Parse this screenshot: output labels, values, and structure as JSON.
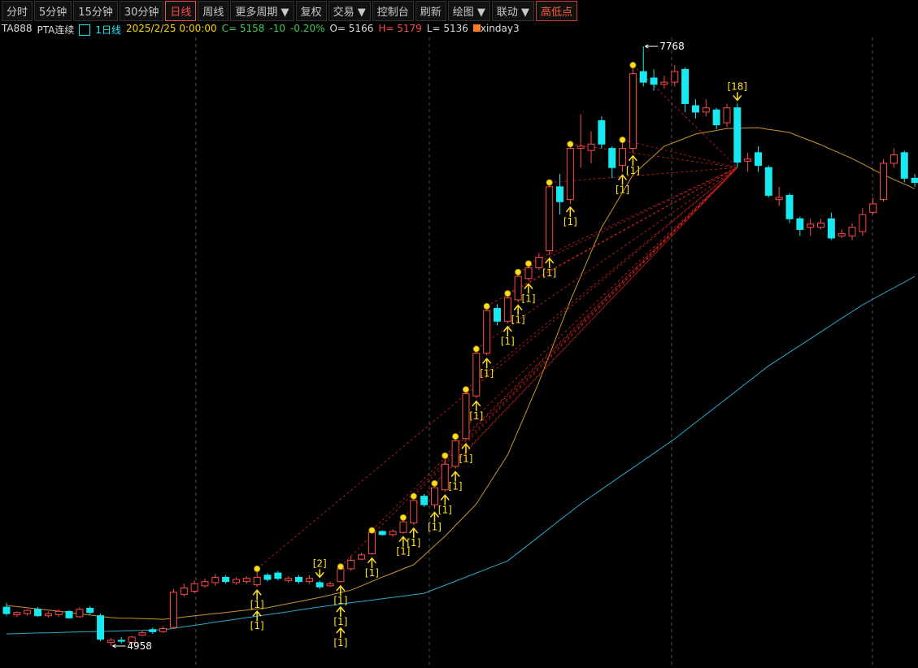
{
  "toolbar": {
    "buttons": [
      "分时",
      "5分钟",
      "15分钟",
      "30分钟",
      "日线",
      "周线",
      "更多周期 ▼",
      "复权",
      "交易 ▼",
      "控制台",
      "刷新",
      "绘图 ▼",
      "联动 ▼",
      "高低点"
    ]
  },
  "info_bar": {
    "symbol": "TA888",
    "name": "PTA连续",
    "period": "1日线",
    "date": "2025/2/25 0:00:00",
    "close": "C= 5158",
    "change": "-10",
    "change_pct": "-0.20%",
    "open": "O= 5166",
    "high": "H= 5179",
    "low": "L= 5136",
    "indicator": "xinday3"
  },
  "chart_data": {
    "type": "candlestick",
    "up_color": "#ff4a4a",
    "down_color": "#18e8f0",
    "ylim": [
      4855,
      7871
    ],
    "open": [
      5140,
      5105,
      5110,
      5130,
      5100,
      5105,
      5120,
      5095,
      5135,
      5100,
      4975,
      4985,
      4975,
      5010,
      5035,
      5025,
      5045,
      5200,
      5215,
      5240,
      5255,
      5280,
      5255,
      5260,
      5245,
      5290,
      5300,
      5265,
      5280,
      5260,
      5255,
      5240,
      5260,
      5320,
      5365,
      5390,
      5495,
      5480,
      5490,
      5535,
      5660,
      5620,
      5690,
      5800,
      5930,
      6130,
      6330,
      6540,
      6480,
      6580,
      6680,
      6730,
      6810,
      7110,
      7050,
      7290,
      7280,
      7420,
      7290,
      7210,
      7290,
      7650,
      7620,
      7590,
      7600,
      7660,
      7490,
      7460,
      7470,
      7410,
      7480,
      7230,
      7270,
      7200,
      7050,
      7070,
      6960,
      6920,
      6920,
      6960,
      6880,
      6880,
      6900,
      6990,
      7050,
      7220,
      7270,
      7150
    ],
    "high": [
      5160,
      5120,
      5130,
      5140,
      5120,
      5130,
      5125,
      5140,
      5145,
      5110,
      4995,
      5000,
      5005,
      5030,
      5045,
      5050,
      5225,
      5250,
      5265,
      5275,
      5295,
      5290,
      5280,
      5285,
      5320,
      5300,
      5310,
      5285,
      5290,
      5290,
      5265,
      5260,
      5330,
      5380,
      5395,
      5500,
      5500,
      5505,
      5560,
      5660,
      5670,
      5720,
      5850,
      5940,
      6160,
      6350,
      6550,
      6560,
      6610,
      6710,
      6750,
      6800,
      7130,
      7170,
      7310,
      7450,
      7370,
      7440,
      7300,
      7330,
      7680,
      7768,
      7660,
      7630,
      7680,
      7670,
      7520,
      7520,
      7480,
      7500,
      7500,
      7270,
      7300,
      7210,
      7110,
      7080,
      6970,
      6960,
      6960,
      6990,
      6910,
      6940,
      7010,
      7060,
      7240,
      7290,
      7280,
      7170
    ],
    "low": [
      5100,
      5095,
      5100,
      5095,
      5090,
      5095,
      5085,
      5090,
      5105,
      4980,
      4958,
      4970,
      4965,
      5005,
      5015,
      5020,
      5040,
      5190,
      5205,
      5230,
      5240,
      5250,
      5245,
      5250,
      5235,
      5260,
      5265,
      5255,
      5250,
      5250,
      5225,
      5235,
      5255,
      5310,
      5360,
      5385,
      5475,
      5470,
      5485,
      5525,
      5610,
      5600,
      5680,
      5790,
      5920,
      6120,
      6320,
      6460,
      6470,
      6570,
      6670,
      6720,
      6790,
      6980,
      7030,
      7200,
      7220,
      7290,
      7150,
      7180,
      7270,
      7580,
      7560,
      7570,
      7580,
      7460,
      7430,
      7440,
      7380,
      7390,
      7200,
      7180,
      7180,
      7060,
      7020,
      6940,
      6880,
      6880,
      6910,
      6860,
      6870,
      6860,
      6880,
      6980,
      7040,
      7200,
      7130,
      7110
    ],
    "close": [
      5110,
      5115,
      5125,
      5100,
      5110,
      5120,
      5090,
      5130,
      5115,
      4990,
      4985,
      4980,
      5000,
      5020,
      5025,
      5040,
      5210,
      5230,
      5250,
      5260,
      5280,
      5260,
      5270,
      5275,
      5280,
      5270,
      5275,
      5275,
      5260,
      5275,
      5235,
      5250,
      5320,
      5360,
      5385,
      5490,
      5480,
      5495,
      5540,
      5640,
      5620,
      5700,
      5810,
      5920,
      6140,
      6330,
      6530,
      6480,
      6590,
      6690,
      6730,
      6780,
      7110,
      7040,
      7290,
      7300,
      7310,
      7310,
      7200,
      7290,
      7640,
      7600,
      7590,
      7600,
      7650,
      7500,
      7460,
      7480,
      7400,
      7480,
      7225,
      7240,
      7210,
      7070,
      7060,
      6960,
      6910,
      6935,
      6940,
      6870,
      6890,
      6920,
      6980,
      7030,
      7220,
      7260,
      7150,
      7130
    ],
    "lines": [
      {
        "color": "#c8962a",
        "values": [
          5148,
          5143,
          5137,
          5132,
          5126,
          5121,
          5115,
          5109,
          5103,
          5097,
          5091,
          5089,
          5088,
          5086,
          5085,
          5083,
          5088,
          5094,
          5099,
          5105,
          5110,
          5115,
          5121,
          5126,
          5132,
          5137,
          5147,
          5157,
          5166,
          5176,
          5186,
          5197,
          5209,
          5220,
          5240,
          5261,
          5281,
          5300,
          5320,
          5339,
          5383,
          5428,
          5472,
          5523,
          5573,
          5624,
          5700,
          5777,
          5853,
          5967,
          6081,
          6195,
          6322,
          6449,
          6576,
          6690,
          6805,
          6919,
          7001,
          7084,
          7166,
          7211,
          7255,
          7300,
          7319,
          7338,
          7357,
          7366,
          7374,
          7383,
          7384,
          7386,
          7387,
          7379,
          7372,
          7364,
          7345,
          7326,
          7307,
          7285,
          7264,
          7242,
          7217,
          7191,
          7166,
          7144,
          7123,
          7101
        ]
      },
      {
        "color": "#2aa9c8",
        "values": [
          5015,
          5016,
          5018,
          5019,
          5020,
          5021,
          5023,
          5024,
          5025,
          5026,
          5028,
          5029,
          5030,
          5031,
          5033,
          5034,
          5041,
          5048,
          5055,
          5062,
          5070,
          5077,
          5084,
          5091,
          5098,
          5105,
          5112,
          5119,
          5127,
          5134,
          5141,
          5148,
          5154,
          5161,
          5167,
          5173,
          5180,
          5186,
          5192,
          5199,
          5205,
          5224,
          5243,
          5262,
          5281,
          5300,
          5319,
          5338,
          5357,
          5395,
          5433,
          5471,
          5510,
          5548,
          5586,
          5624,
          5658,
          5692,
          5726,
          5760,
          5793,
          5827,
          5861,
          5895,
          5929,
          5967,
          6005,
          6043,
          6081,
          6119,
          6157,
          6195,
          6233,
          6271,
          6303,
          6335,
          6366,
          6398,
          6430,
          6462,
          6494,
          6525,
          6557,
          6584,
          6610,
          6637,
          6663,
          6690
        ]
      }
    ],
    "buy_labels": {
      "24": [
        "[1]",
        "[1]"
      ],
      "32": [
        "[1]",
        "[1]",
        "[1]"
      ],
      "35": [
        "[1]"
      ],
      "38": [
        "[1]"
      ],
      "39": [
        "[1]"
      ],
      "41": [
        "[1]"
      ],
      "42": [
        "[1]"
      ],
      "43": [
        "[1]"
      ],
      "44": [
        "[1]"
      ],
      "45": [
        "[1]"
      ],
      "46": [
        "[1]"
      ],
      "48": [
        "[1]"
      ],
      "49": [
        "[1]"
      ],
      "50": [
        "[1]"
      ],
      "52": [
        "[1]"
      ],
      "54": [
        "[1]"
      ],
      "59": [
        "[1]"
      ],
      "60": [
        "[1]"
      ]
    },
    "sell_labels": {
      "30": [
        "[2]"
      ],
      "70": [
        "[18]"
      ]
    },
    "high_label": 7768,
    "low_label": 4958
  }
}
